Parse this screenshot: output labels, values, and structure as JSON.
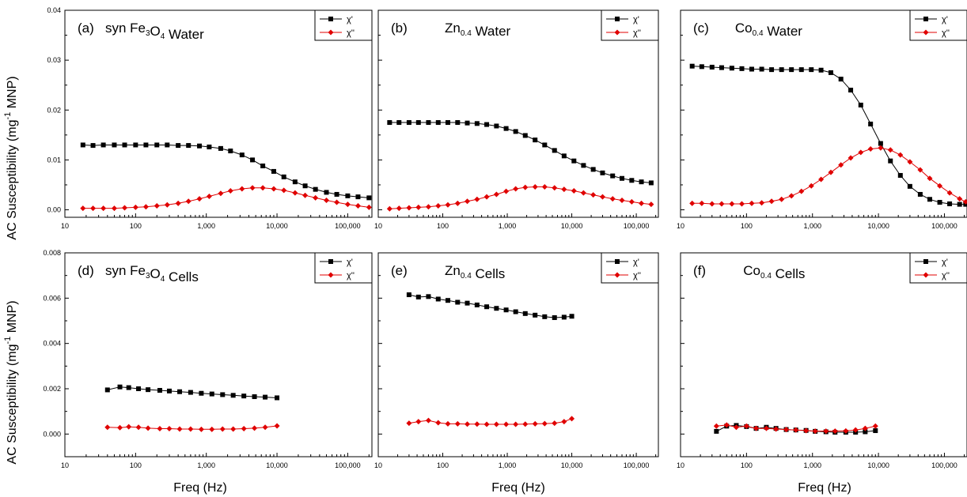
{
  "figure": {
    "ylabel_main": "AC Susceptibility (mg",
    "ylabel_sup": "-1",
    "ylabel_tail": " MNP)",
    "xlabel": "Freq (Hz)",
    "x_tick_labels": [
      "10",
      "100",
      "1,000",
      "10,000",
      "100,000"
    ]
  },
  "colors": {
    "chi_prime": "#000000",
    "chi_double_prime": "#e00000"
  },
  "legend": {
    "chi_prime": "χ'",
    "chi_double_prime": "χ''"
  },
  "chart_data": [
    {
      "type": "scatter",
      "title_parts": [
        {
          "t": "(a)   syn Fe"
        },
        {
          "t": "3",
          "sub": true
        },
        {
          "t": "O"
        },
        {
          "t": "4",
          "sub": true
        },
        {
          "t": " Water"
        }
      ],
      "xscale": "log",
      "xlim": [
        10,
        220000
      ],
      "ylim": [
        -0.0015,
        0.04
      ],
      "yticks": [
        0.0,
        0.01,
        0.02,
        0.03,
        0.04
      ],
      "ytick_labels": [
        "0.00",
        "0.01",
        "0.02",
        "0.03",
        "0.04"
      ],
      "series": [
        {
          "name": "χ'",
          "x": [
            18,
            25,
            35,
            50,
            70,
            100,
            140,
            200,
            280,
            400,
            560,
            800,
            1100,
            1600,
            2200,
            3200,
            4500,
            6300,
            9000,
            12500,
            18000,
            25000,
            35000,
            50000,
            70000,
            100000,
            140000,
            200000
          ],
          "y": [
            0.013,
            0.0129,
            0.013,
            0.013,
            0.013,
            0.013,
            0.013,
            0.013,
            0.013,
            0.0129,
            0.0129,
            0.0128,
            0.0126,
            0.0123,
            0.0118,
            0.011,
            0.01,
            0.0088,
            0.0077,
            0.0066,
            0.0056,
            0.0048,
            0.0041,
            0.0035,
            0.0031,
            0.0028,
            0.0026,
            0.0024
          ]
        },
        {
          "name": "χ''",
          "x": [
            18,
            25,
            35,
            50,
            70,
            100,
            140,
            200,
            280,
            400,
            560,
            800,
            1100,
            1600,
            2200,
            3200,
            4500,
            6300,
            9000,
            12500,
            18000,
            25000,
            35000,
            50000,
            70000,
            100000,
            140000,
            200000
          ],
          "y": [
            0.0003,
            0.0003,
            0.0003,
            0.0003,
            0.0004,
            0.0005,
            0.0006,
            0.0008,
            0.001,
            0.0013,
            0.0017,
            0.0022,
            0.0027,
            0.0033,
            0.0038,
            0.0042,
            0.0044,
            0.0044,
            0.0042,
            0.0039,
            0.0034,
            0.0029,
            0.0024,
            0.0019,
            0.0015,
            0.0011,
            0.0008,
            0.0005
          ]
        }
      ]
    },
    {
      "type": "scatter",
      "title_parts": [
        {
          "t": "(b)          Zn"
        },
        {
          "t": "0.4",
          "sub": true
        },
        {
          "t": " Water"
        }
      ],
      "xscale": "log",
      "xlim": [
        10,
        220000
      ],
      "ylim": [
        -0.0015,
        0.04
      ],
      "yticks": [
        0.0,
        0.01,
        0.02,
        0.03,
        0.04
      ],
      "ytick_labels": [],
      "series": [
        {
          "name": "χ'",
          "x": [
            15,
            21,
            30,
            42,
            60,
            85,
            120,
            170,
            240,
            340,
            480,
            680,
            960,
            1350,
            1900,
            2700,
            3800,
            5400,
            7600,
            10800,
            15200,
            21500,
            30000,
            43000,
            60000,
            85000,
            120000,
            170000
          ],
          "y": [
            0.0175,
            0.0175,
            0.0175,
            0.0175,
            0.0175,
            0.0175,
            0.0175,
            0.0175,
            0.0174,
            0.0173,
            0.0171,
            0.0168,
            0.0163,
            0.0157,
            0.0149,
            0.014,
            0.013,
            0.0119,
            0.0108,
            0.0098,
            0.0089,
            0.0081,
            0.0074,
            0.0068,
            0.0063,
            0.0059,
            0.0056,
            0.0054
          ]
        },
        {
          "name": "χ''",
          "x": [
            15,
            21,
            30,
            42,
            60,
            85,
            120,
            170,
            240,
            340,
            480,
            680,
            960,
            1350,
            1900,
            2700,
            3800,
            5400,
            7600,
            10800,
            15200,
            21500,
            30000,
            43000,
            60000,
            85000,
            120000,
            170000
          ],
          "y": [
            0.0002,
            0.0003,
            0.0004,
            0.0005,
            0.0006,
            0.0008,
            0.001,
            0.0013,
            0.0017,
            0.0021,
            0.0026,
            0.0031,
            0.0037,
            0.0042,
            0.0045,
            0.0046,
            0.0046,
            0.0044,
            0.0041,
            0.0038,
            0.0034,
            0.003,
            0.0026,
            0.0022,
            0.0019,
            0.0016,
            0.0013,
            0.0011
          ]
        }
      ]
    },
    {
      "type": "scatter",
      "title_parts": [
        {
          "t": "(c)       Co"
        },
        {
          "t": "0.4",
          "sub": true
        },
        {
          "t": " Water"
        }
      ],
      "xscale": "log",
      "xlim": [
        10,
        220000
      ],
      "ylim": [
        -0.0015,
        0.04
      ],
      "yticks": [
        0.0,
        0.01,
        0.02,
        0.03,
        0.04
      ],
      "ytick_labels": [],
      "series": [
        {
          "name": "χ'",
          "x": [
            15,
            21,
            30,
            42,
            60,
            85,
            120,
            170,
            240,
            340,
            480,
            680,
            960,
            1350,
            1900,
            2700,
            3800,
            5400,
            7600,
            10800,
            15200,
            21500,
            30000,
            43000,
            60000,
            85000,
            120000,
            170000,
            210000
          ],
          "y": [
            0.0288,
            0.0287,
            0.0286,
            0.0285,
            0.0284,
            0.0283,
            0.0282,
            0.0282,
            0.0281,
            0.0281,
            0.0281,
            0.0281,
            0.0281,
            0.028,
            0.0275,
            0.0262,
            0.024,
            0.021,
            0.0172,
            0.0133,
            0.0098,
            0.0069,
            0.0047,
            0.0031,
            0.0021,
            0.0015,
            0.0012,
            0.0011,
            0.0011
          ]
        },
        {
          "name": "χ''",
          "x": [
            15,
            21,
            30,
            42,
            60,
            85,
            120,
            170,
            240,
            340,
            480,
            680,
            960,
            1350,
            1900,
            2700,
            3800,
            5400,
            7600,
            10800,
            15200,
            21500,
            30000,
            43000,
            60000,
            85000,
            120000,
            170000,
            210000
          ],
          "y": [
            0.0013,
            0.0013,
            0.0012,
            0.0012,
            0.0012,
            0.0012,
            0.0013,
            0.0014,
            0.0017,
            0.0021,
            0.0028,
            0.0037,
            0.0048,
            0.0061,
            0.0075,
            0.009,
            0.0104,
            0.0115,
            0.0122,
            0.0124,
            0.012,
            0.011,
            0.0096,
            0.008,
            0.0063,
            0.0048,
            0.0034,
            0.0022,
            0.0016
          ]
        }
      ]
    },
    {
      "type": "scatter",
      "title_parts": [
        {
          "t": "(d)   syn Fe"
        },
        {
          "t": "3",
          "sub": true
        },
        {
          "t": "O"
        },
        {
          "t": "4",
          "sub": true
        },
        {
          "t": " Cells"
        }
      ],
      "xscale": "log",
      "xlim": [
        10,
        220000
      ],
      "ylim": [
        -0.001,
        0.008
      ],
      "yticks": [
        0.0,
        0.002,
        0.004,
        0.006,
        0.008
      ],
      "ytick_labels": [
        "0.000",
        "0.002",
        "0.004",
        "0.006",
        "0.008"
      ],
      "series": [
        {
          "name": "χ'",
          "x": [
            40,
            60,
            80,
            110,
            150,
            220,
            300,
            420,
            600,
            850,
            1200,
            1700,
            2400,
            3400,
            4800,
            6800,
            10000
          ],
          "y": [
            0.00195,
            0.00208,
            0.00205,
            0.002,
            0.00196,
            0.00193,
            0.0019,
            0.00187,
            0.00184,
            0.0018,
            0.00177,
            0.00174,
            0.00171,
            0.00168,
            0.00165,
            0.00163,
            0.0016
          ]
        },
        {
          "name": "χ''",
          "x": [
            40,
            60,
            80,
            110,
            150,
            220,
            300,
            420,
            600,
            850,
            1200,
            1700,
            2400,
            3400,
            4800,
            6800,
            10000
          ],
          "y": [
            0.0003,
            0.00028,
            0.00032,
            0.0003,
            0.00026,
            0.00024,
            0.00024,
            0.00022,
            0.00022,
            0.00021,
            0.00021,
            0.00022,
            0.00022,
            0.00024,
            0.00026,
            0.0003,
            0.00036
          ]
        }
      ]
    },
    {
      "type": "scatter",
      "title_parts": [
        {
          "t": "(e)          Zn"
        },
        {
          "t": "0.4",
          "sub": true
        },
        {
          "t": " Cells"
        }
      ],
      "xscale": "log",
      "xlim": [
        10,
        220000
      ],
      "ylim": [
        -0.001,
        0.008
      ],
      "yticks": [
        0.0,
        0.002,
        0.004,
        0.006,
        0.008
      ],
      "ytick_labels": [],
      "series": [
        {
          "name": "χ'",
          "x": [
            30,
            42,
            60,
            85,
            120,
            170,
            240,
            340,
            480,
            680,
            960,
            1350,
            1900,
            2700,
            3800,
            5400,
            7600,
            10000
          ],
          "y": [
            0.00615,
            0.00605,
            0.00607,
            0.00596,
            0.0059,
            0.00582,
            0.00578,
            0.0057,
            0.00562,
            0.00555,
            0.00548,
            0.0054,
            0.00532,
            0.00525,
            0.00518,
            0.00514,
            0.00516,
            0.0052
          ]
        },
        {
          "name": "χ''",
          "x": [
            30,
            42,
            60,
            85,
            120,
            170,
            240,
            340,
            480,
            680,
            960,
            1350,
            1900,
            2700,
            3800,
            5400,
            7600,
            10000
          ],
          "y": [
            0.00048,
            0.00055,
            0.0006,
            0.0005,
            0.00045,
            0.00045,
            0.00044,
            0.00044,
            0.00043,
            0.00043,
            0.00043,
            0.00043,
            0.00044,
            0.00045,
            0.00046,
            0.00048,
            0.00055,
            0.00068
          ]
        }
      ]
    },
    {
      "type": "scatter",
      "title_parts": [
        {
          "t": "(f)          Co"
        },
        {
          "t": "0.4",
          "sub": true
        },
        {
          "t": " Cells"
        }
      ],
      "xscale": "log",
      "xlim": [
        10,
        220000
      ],
      "ylim": [
        -0.001,
        0.008
      ],
      "yticks": [
        0.0,
        0.002,
        0.004,
        0.006,
        0.008
      ],
      "ytick_labels": [],
      "series": [
        {
          "name": "χ'",
          "x": [
            35,
            50,
            70,
            100,
            140,
            200,
            280,
            400,
            560,
            800,
            1100,
            1600,
            2200,
            3200,
            4500,
            6300,
            9000
          ],
          "y": [
            0.00012,
            0.00035,
            0.00038,
            0.00033,
            0.00025,
            0.0003,
            0.00025,
            0.0002,
            0.00018,
            0.00016,
            0.00012,
            0.0001,
            8e-05,
            8e-05,
            8e-05,
            0.0001,
            0.00015
          ]
        },
        {
          "name": "χ''",
          "x": [
            35,
            50,
            70,
            100,
            140,
            200,
            280,
            400,
            560,
            800,
            1100,
            1600,
            2200,
            3200,
            4500,
            6300,
            9000
          ],
          "y": [
            0.00035,
            0.0004,
            0.0003,
            0.00035,
            0.00025,
            0.00025,
            0.00022,
            0.0002,
            0.00018,
            0.00015,
            0.00013,
            0.00013,
            0.00013,
            0.00014,
            0.00018,
            0.00025,
            0.00035
          ]
        }
      ]
    }
  ]
}
